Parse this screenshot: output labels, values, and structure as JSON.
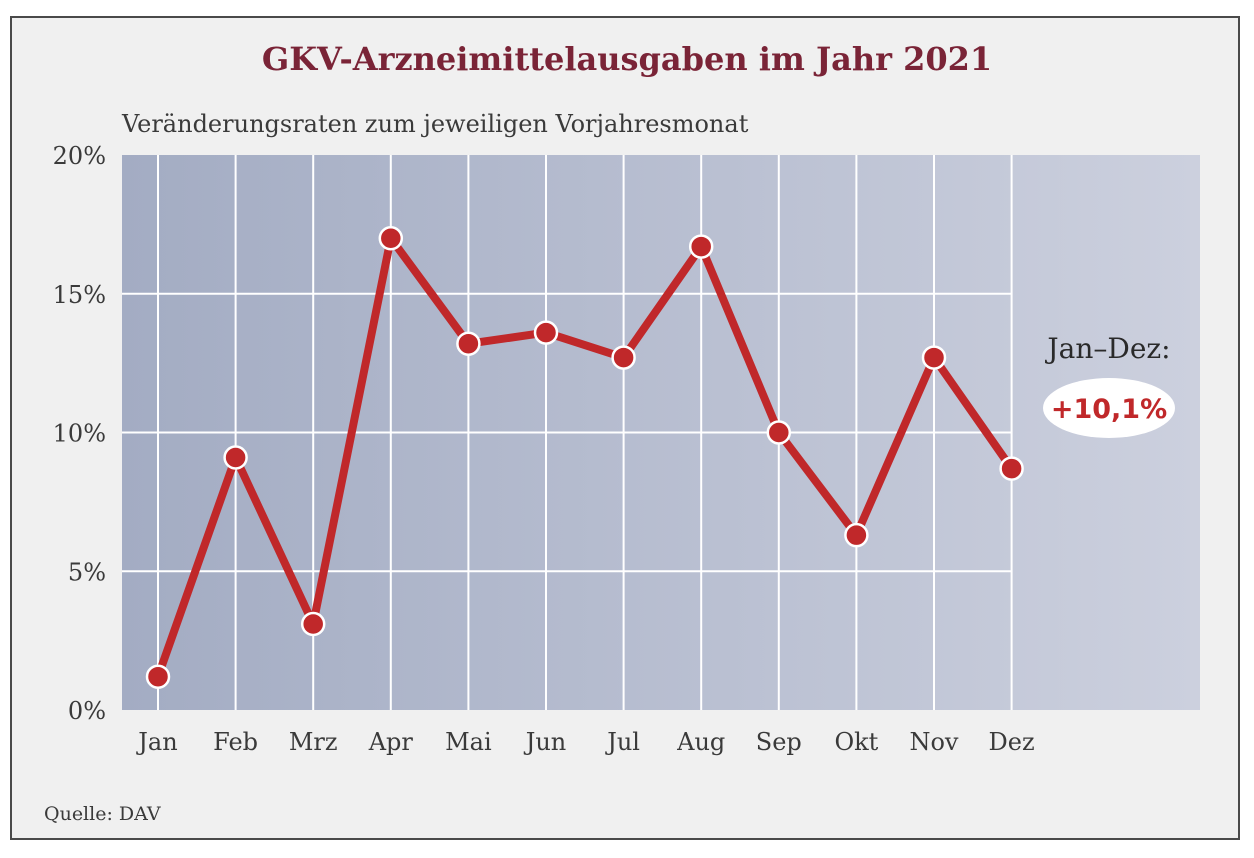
{
  "colors": {
    "title": "#7a2437",
    "line": "#c0282a",
    "marker": "#c0282a",
    "marker_border": "#ffffff",
    "plot_bg_start": "#a3acc3",
    "plot_bg_end": "#ccd0de",
    "grid": "#ffffff",
    "summary_bubble": "#ffffff"
  },
  "chart_data": {
    "type": "line",
    "title": "GKV-Arzneimittelausgaben im Jahr 2021",
    "subtitle": "Veränderungsraten zum jeweiligen Vorjahresmonat",
    "categories": [
      "Jan",
      "Feb",
      "Mrz",
      "Apr",
      "Mai",
      "Jun",
      "Jul",
      "Aug",
      "Sep",
      "Okt",
      "Nov",
      "Dez"
    ],
    "series": [
      {
        "values": [
          1.2,
          9.1,
          3.1,
          17.0,
          13.2,
          13.6,
          12.7,
          16.7,
          10.0,
          6.3,
          12.7,
          8.7
        ]
      }
    ],
    "ylim": [
      0,
      20
    ],
    "yticks": [
      0,
      5,
      10,
      15,
      20
    ],
    "ytick_labels": [
      "0%",
      "5%",
      "10%",
      "15%",
      "20%"
    ],
    "grid": true,
    "annotation": {
      "label": "Jan–Dez:",
      "value": "+10,1%"
    }
  },
  "source": "Quelle: DAV"
}
